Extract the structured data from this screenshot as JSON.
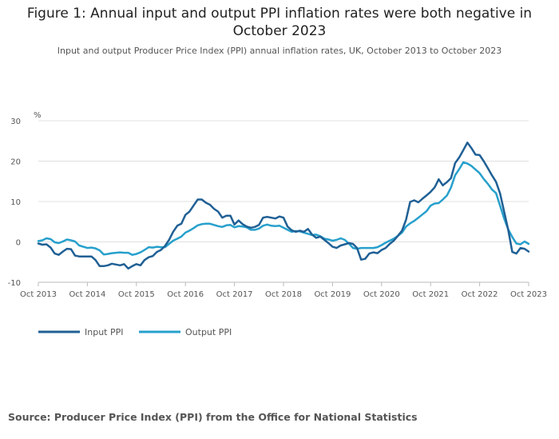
{
  "title": "Figure 1: Annual input and output PPI inflation rates were both negative in October 2023",
  "subtitle": "Input and output Producer Price Index (PPI) annual inflation rates, UK, October 2013 to October 2023",
  "source": "Source: Producer Price Index (PPI) from the Office for National Statistics",
  "chart_data": {
    "type": "line",
    "title": "Figure 1: Annual input and output PPI inflation rates were both negative in October 2023",
    "subtitle": "Input and output Producer Price Index (PPI) annual inflation rates, UK, October 2013 to October 2023",
    "ylabel": "%",
    "xlabel": "",
    "ylim": [
      -10,
      30
    ],
    "yticks": [
      30,
      20,
      10,
      0,
      -10
    ],
    "x_start": "Oct 2013",
    "x_end": "Oct 2023",
    "xticks": [
      "Oct 2013",
      "Oct 2014",
      "Oct 2015",
      "Oct 2016",
      "Oct 2017",
      "Oct 2018",
      "Oct 2019",
      "Oct 2020",
      "Oct 2021",
      "Oct 2022",
      "Oct 2023"
    ],
    "grid": true,
    "legend": "bottom-left",
    "series": [
      {
        "name": "Input PPI",
        "color": "#206095",
        "values": [
          -0.4,
          -0.7,
          -0.6,
          -1.4,
          -2.9,
          -3.2,
          -2.4,
          -1.7,
          -1.8,
          -3.4,
          -3.6,
          -3.6,
          -3.6,
          -3.6,
          -4.5,
          -6.0,
          -6.0,
          -5.8,
          -5.4,
          -5.6,
          -5.8,
          -5.5,
          -6.6,
          -6.0,
          -5.5,
          -5.8,
          -4.5,
          -3.8,
          -3.5,
          -2.5,
          -2.0,
          -1.0,
          0.5,
          2.5,
          4.0,
          4.5,
          6.7,
          7.5,
          9.0,
          10.5,
          10.5,
          9.7,
          9.2,
          8.2,
          7.5,
          6.0,
          6.5,
          6.5,
          4.3,
          5.3,
          4.4,
          3.8,
          3.5,
          3.7,
          4.2,
          6.0,
          6.2,
          6.0,
          5.8,
          6.3,
          6.0,
          3.8,
          2.9,
          2.5,
          2.8,
          2.5,
          3.2,
          1.8,
          1.0,
          1.3,
          0.5,
          -0.3,
          -1.2,
          -1.5,
          -0.9,
          -0.6,
          -0.3,
          -0.5,
          -1.5,
          -4.4,
          -4.2,
          -2.9,
          -2.6,
          -2.8,
          -2.0,
          -1.5,
          -0.5,
          0.3,
          1.5,
          2.8,
          5.5,
          9.9,
          10.3,
          9.8,
          10.7,
          11.5,
          12.4,
          13.5,
          15.5,
          14.0,
          14.8,
          15.8,
          19.5,
          20.9,
          22.7,
          24.6,
          23.2,
          21.6,
          21.5,
          20.0,
          18.3,
          16.5,
          14.9,
          12.0,
          7.5,
          3.0,
          -2.5,
          -2.9,
          -1.5,
          -1.7,
          -2.4
        ]
      },
      {
        "name": "Output PPI",
        "color": "#27A0CC",
        "values": [
          0.2,
          0.4,
          0.9,
          0.7,
          -0.1,
          -0.3,
          0.1,
          0.6,
          0.4,
          0.1,
          -0.9,
          -1.2,
          -1.5,
          -1.4,
          -1.6,
          -2.1,
          -3.1,
          -3.0,
          -2.8,
          -2.7,
          -2.6,
          -2.7,
          -2.7,
          -3.2,
          -3.0,
          -2.6,
          -2.0,
          -1.3,
          -1.4,
          -1.2,
          -1.3,
          -1.3,
          -0.5,
          0.3,
          0.8,
          1.3,
          2.3,
          2.8,
          3.4,
          4.1,
          4.4,
          4.5,
          4.5,
          4.2,
          3.9,
          3.7,
          4.1,
          4.2,
          3.6,
          3.9,
          3.8,
          3.6,
          3.0,
          3.0,
          3.3,
          4.0,
          4.3,
          4.0,
          3.9,
          4.0,
          3.5,
          3.0,
          2.5,
          2.7,
          2.6,
          2.3,
          2.0,
          1.7,
          1.8,
          1.4,
          0.8,
          0.6,
          0.3,
          0.5,
          0.9,
          0.5,
          -0.4,
          -1.5,
          -1.7,
          -1.5,
          -1.5,
          -1.5,
          -1.5,
          -1.3,
          -0.8,
          -0.2,
          0.3,
          0.8,
          1.5,
          2.3,
          3.8,
          4.6,
          5.2,
          6.0,
          6.8,
          7.6,
          9.0,
          9.5,
          9.6,
          10.5,
          11.5,
          13.5,
          16.5,
          18.0,
          19.7,
          19.4,
          18.8,
          17.9,
          17.0,
          15.6,
          14.4,
          13.0,
          12.1,
          9.0,
          5.8,
          3.1,
          1.2,
          -0.4,
          -0.6,
          0.1,
          -0.5
        ]
      }
    ]
  }
}
